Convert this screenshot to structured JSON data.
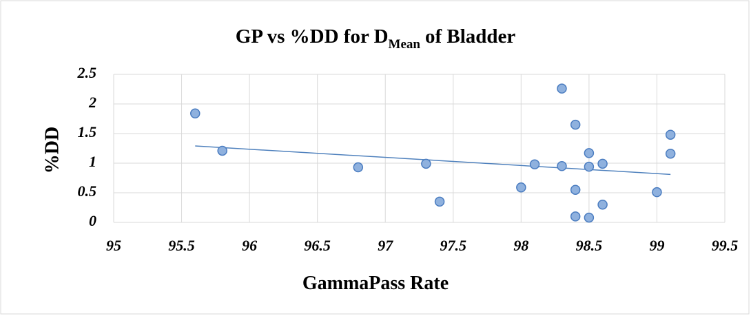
{
  "chart_data": {
    "type": "scatter",
    "title": [
      "GP vs %DD for D",
      "Mean",
      "of Bladder"
    ],
    "x_label": "GammaPass Rate",
    "y_label": "%DD",
    "series": [
      {
        "color": "#8fb1de",
        "x": [
          95.6,
          95.8,
          96.8,
          97.3,
          97.4,
          98.0,
          98.1,
          98.3,
          98.3,
          98.4,
          98.4,
          98.4,
          98.5,
          98.5,
          98.5,
          98.6,
          98.6,
          99.0,
          99.1,
          99.1
        ],
        "values": [
          1.84,
          1.21,
          0.93,
          0.99,
          0.35,
          0.59,
          0.98,
          2.26,
          0.95,
          1.65,
          0.55,
          0.1,
          1.17,
          0.94,
          0.08,
          0.99,
          0.3,
          0.51,
          1.48,
          1.16
        ]
      }
    ],
    "trendline": {
      "color": "#4f81bd",
      "x": [
        95.6,
        99.1
      ],
      "values": [
        1.29,
        0.81
      ]
    },
    "xlim": [
      95,
      99.5
    ],
    "xticks": [
      95,
      95.5,
      96,
      96.5,
      97,
      97.5,
      98,
      98.5,
      99,
      99.5
    ],
    "ylim": [
      0,
      2.5
    ],
    "yticks": [
      0,
      0.5,
      1,
      1.5,
      2,
      2.5
    ],
    "grid": true
  }
}
